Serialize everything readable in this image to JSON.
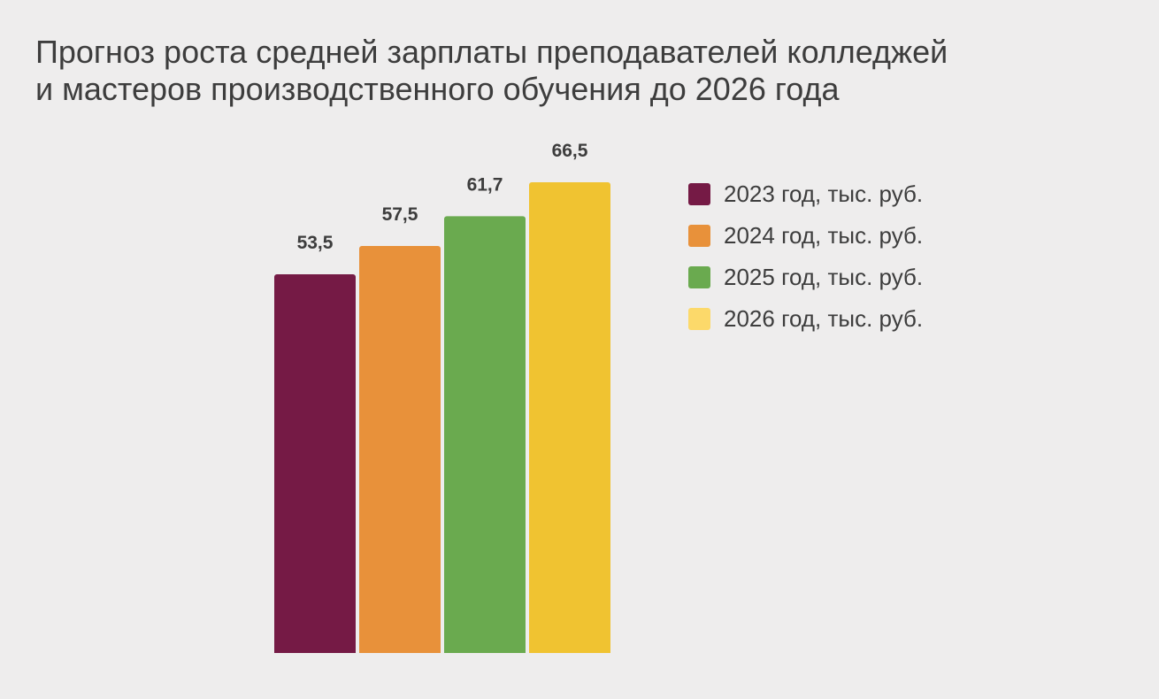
{
  "chart_data": {
    "type": "bar",
    "title": "Прогноз роста средней зарплаты преподавателей колледжей и мастеров производственного обучения до 2026 года",
    "title_lines": [
      "Прогноз роста средней зарплаты преподавателей колледжей",
      "и мастеров производственного обучения до 2026 года"
    ],
    "xlabel": "",
    "ylabel": "",
    "grid": false,
    "legend_position": "right",
    "series": [
      {
        "name": "2023 год, тыс. руб.",
        "value": 53.5,
        "label": "53,5",
        "color": "#751a45"
      },
      {
        "name": "2024 год, тыс. руб.",
        "value": 57.5,
        "label": "57,5",
        "color": "#e8913a"
      },
      {
        "name": "2025 год, тыс. руб.",
        "value": 61.7,
        "label": "61,7",
        "color": "#6aaa4f"
      },
      {
        "name": "2026 год, тыс. руб.",
        "value": 66.5,
        "label": "66,5",
        "color": "#f0c331",
        "legend_color": "#fcd96a"
      }
    ]
  }
}
